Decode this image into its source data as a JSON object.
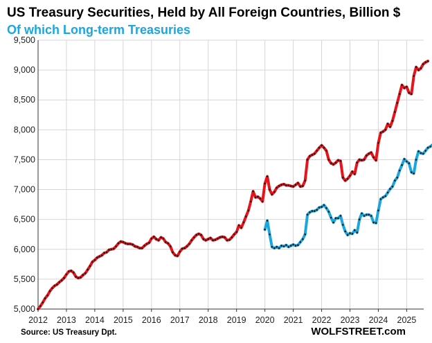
{
  "chart_data": {
    "type": "line",
    "title": "US Treasury Securities, Held by All Foreign Countries, Billion $",
    "subtitle": "Of which Long-term Treasuries",
    "xlabel": "",
    "ylabel": "",
    "xlim": [
      2012,
      2025.6
    ],
    "ylim": [
      5000,
      9500
    ],
    "grid": true,
    "x_tick_labels": [
      "2012",
      "2013",
      "2014",
      "2015",
      "2016",
      "2017",
      "2018",
      "2019",
      "2020",
      "2021",
      "2022",
      "2023",
      "2024",
      "2025"
    ],
    "y_tick_labels": [
      "5,000",
      "5,500",
      "6,000",
      "6,500",
      "7,000",
      "7,500",
      "8,000",
      "8,500",
      "9,000",
      "9,500"
    ],
    "series": [
      {
        "name": "US Treasury Securities, Held by All Foreign Countries",
        "color": "#e8141b",
        "start_year": 2012.0,
        "step": 0.0833333,
        "values": [
          5000,
          5050,
          5110,
          5180,
          5230,
          5300,
          5350,
          5390,
          5410,
          5450,
          5480,
          5520,
          5580,
          5630,
          5640,
          5610,
          5540,
          5520,
          5530,
          5570,
          5600,
          5660,
          5720,
          5790,
          5820,
          5860,
          5880,
          5900,
          5940,
          5950,
          5990,
          6000,
          6010,
          6050,
          6100,
          6130,
          6120,
          6100,
          6090,
          6090,
          6080,
          6050,
          6040,
          6020,
          6020,
          6060,
          6090,
          6110,
          6180,
          6210,
          6170,
          6150,
          6200,
          6180,
          6120,
          6100,
          6050,
          5950,
          5900,
          5890,
          5960,
          6010,
          6020,
          6050,
          6090,
          6150,
          6200,
          6240,
          6260,
          6240,
          6170,
          6150,
          6170,
          6190,
          6150,
          6160,
          6180,
          6200,
          6210,
          6200,
          6150,
          6160,
          6200,
          6250,
          6290,
          6400,
          6360,
          6450,
          6550,
          6650,
          6800,
          6970,
          6870,
          6880,
          6850,
          6800,
          7100,
          7220,
          7000,
          6920,
          6960,
          7030,
          7060,
          7080,
          7090,
          7070,
          7070,
          7060,
          7050,
          7080,
          7110,
          7050,
          7060,
          7150,
          7500,
          7560,
          7580,
          7600,
          7650,
          7700,
          7740,
          7700,
          7650,
          7500,
          7440,
          7420,
          7450,
          7490,
          7480,
          7200,
          7150,
          7180,
          7230,
          7300,
          7260,
          7450,
          7500,
          7490,
          7500,
          7570,
          7600,
          7620,
          7540,
          7490,
          7780,
          7950,
          7970,
          8000,
          8100,
          8050,
          8150,
          8300,
          8450,
          8600,
          8750,
          8700,
          8720,
          8620,
          8600,
          8900,
          9050,
          9000,
          9030,
          9100,
          9130,
          9150
        ]
      },
      {
        "name": "Of which Long-term Treasuries",
        "color": "#1aa6df",
        "start_year": 2020.0,
        "step": 0.0833333,
        "values": [
          6330,
          6480,
          6250,
          6040,
          6020,
          6040,
          6020,
          6060,
          6050,
          6070,
          6040,
          6060,
          6080,
          6060,
          6070,
          6120,
          6170,
          6250,
          6580,
          6620,
          6640,
          6640,
          6660,
          6700,
          6710,
          6740,
          6690,
          6630,
          6530,
          6450,
          6520,
          6520,
          6560,
          6410,
          6300,
          6240,
          6270,
          6260,
          6320,
          6280,
          6500,
          6600,
          6560,
          6580,
          6580,
          6560,
          6450,
          6440,
          6650,
          6840,
          6870,
          6890,
          6950,
          7010,
          7050,
          7150,
          7200,
          7320,
          7410,
          7510,
          7470,
          7440,
          7290,
          7270,
          7500,
          7640,
          7610,
          7600,
          7650,
          7700,
          7720,
          7750
        ]
      }
    ]
  },
  "footer": {
    "source": "Source: US Treasury  Dpt.",
    "brand": "WOLFSTREET.com"
  }
}
